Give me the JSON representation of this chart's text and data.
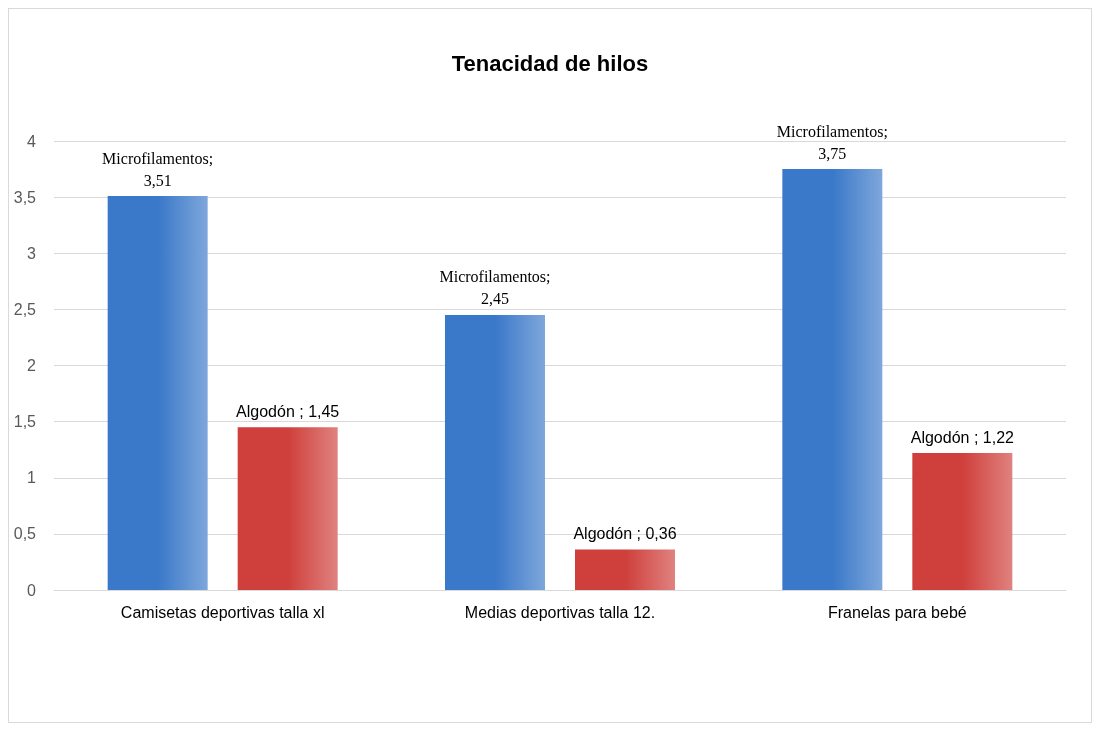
{
  "chart_data": {
    "type": "bar",
    "title": "Tenacidad de hilos",
    "categories": [
      "Camisetas deportivas talla xl",
      "Medias deportivas talla 12.",
      "Franelas para bebé"
    ],
    "series": [
      {
        "color": "#3a78c9",
        "values": [
          3.51,
          2.45,
          3.75
        ],
        "value_labels": [
          "Microfilamentos;\n3,51",
          "Microfilamentos;\n2,45",
          "Microfilamentos;\n3,75"
        ]
      },
      {
        "color": "#cf3f3b",
        "values": [
          1.45,
          0.36,
          1.22
        ],
        "value_labels": [
          "Algodón ; 1,45",
          "Algodón ; 0,36",
          "Algodón ; 1,22"
        ]
      }
    ],
    "ylim": [
      0,
      4
    ],
    "yticks": [
      0,
      {
        "value": 0.5,
        "label": "0,5"
      },
      1,
      {
        "value": 1.5,
        "label": "1,5"
      },
      2,
      {
        "value": 2.5,
        "label": "2,5"
      },
      3,
      {
        "value": 3.5,
        "label": "3,5"
      },
      4
    ],
    "grid": "y"
  }
}
